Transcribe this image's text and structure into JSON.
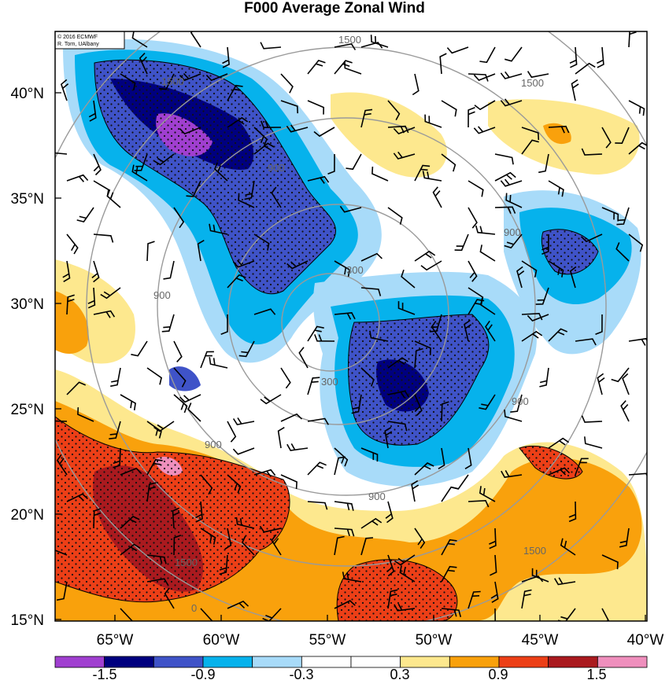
{
  "title": "F000 Average Zonal Wind",
  "credit": [
    "© 2016 ECMWF",
    "R. Torn, UAlbany"
  ],
  "lat_labels": [
    "40°N",
    "35°N",
    "30°N",
    "25°N",
    "20°N",
    "15°N"
  ],
  "lon_labels": [
    "65°W",
    "60°W",
    "55°W",
    "50°W",
    "45°W",
    "40°W"
  ],
  "colorbar": {
    "colors": [
      "#a03fd0",
      "#00007f",
      "#3f53c8",
      "#06b2ec",
      "#a8dbf9",
      "#ffffff",
      "#ffffff",
      "#fde88e",
      "#f9a10c",
      "#ec3f17",
      "#aa1a1f",
      "#ef8fbd"
    ],
    "tick_labels": [
      "-1.5",
      "-0.9",
      "-0.3",
      "0.3",
      "0.9",
      "1.5"
    ]
  },
  "contour_labels": [
    "1500",
    "1500",
    "1500",
    "900",
    "900",
    "900",
    "900",
    "900",
    "900",
    "300",
    "300",
    "0",
    "1500",
    "1500"
  ]
}
